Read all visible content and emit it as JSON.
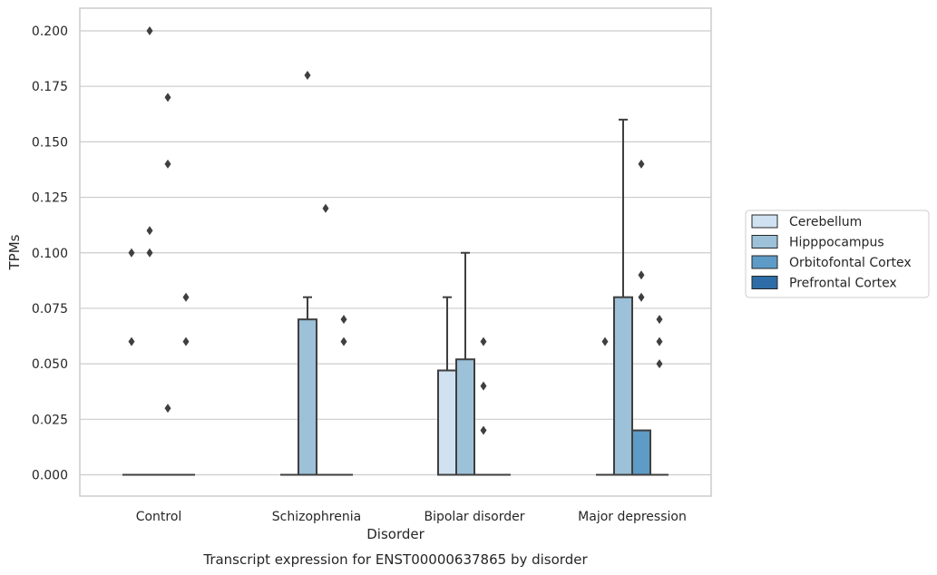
{
  "chart_data": {
    "type": "box",
    "title": "",
    "caption": "Transcript expression for ENST00000637865 by disorder",
    "xlabel": "Disorder",
    "ylabel": "TPMs",
    "ylim": [
      -0.01,
      0.21
    ],
    "yticks": [
      0.0,
      0.025,
      0.05,
      0.075,
      0.1,
      0.125,
      0.15,
      0.175,
      0.2
    ],
    "ytick_labels": [
      "0.000",
      "0.025",
      "0.050",
      "0.075",
      "0.100",
      "0.125",
      "0.150",
      "0.175",
      "0.200"
    ],
    "grid": "horizontal",
    "legend_position": "right",
    "categories": [
      "Control",
      "Schizophrenia",
      "Bipolar disorder",
      "Major depression"
    ],
    "series": [
      {
        "name": "Cerebellum",
        "color": "#d0e1f1",
        "boxes": [
          {
            "q1": 0,
            "median": 0,
            "q3": 0,
            "whisker_low": 0,
            "whisker_high": 0,
            "outliers": [
              0.06,
              0.1
            ]
          },
          {
            "q1": 0,
            "median": 0,
            "q3": 0,
            "whisker_low": 0,
            "whisker_high": 0,
            "outliers": []
          },
          {
            "q1": 0,
            "median": 0,
            "q3": 0.047,
            "whisker_low": 0,
            "whisker_high": 0.08,
            "outliers": []
          },
          {
            "q1": 0,
            "median": 0,
            "q3": 0,
            "whisker_low": 0,
            "whisker_high": 0,
            "outliers": [
              0.06
            ]
          }
        ]
      },
      {
        "name": "Hipppocampus",
        "color": "#9cc1d8",
        "boxes": [
          {
            "q1": 0,
            "median": 0,
            "q3": 0,
            "whisker_low": 0,
            "whisker_high": 0,
            "outliers": [
              0.2,
              0.11,
              0.1
            ]
          },
          {
            "q1": 0,
            "median": 0,
            "q3": 0.07,
            "whisker_low": 0,
            "whisker_high": 0.08,
            "outliers": [
              0.18
            ]
          },
          {
            "q1": 0,
            "median": 0,
            "q3": 0.052,
            "whisker_low": 0,
            "whisker_high": 0.1,
            "outliers": []
          },
          {
            "q1": 0,
            "median": 0,
            "q3": 0.08,
            "whisker_low": 0,
            "whisker_high": 0.16,
            "outliers": []
          }
        ]
      },
      {
        "name": "Orbitofontal Cortex",
        "color": "#5e9bc6",
        "boxes": [
          {
            "q1": 0,
            "median": 0,
            "q3": 0,
            "whisker_low": 0,
            "whisker_high": 0,
            "outliers": [
              0.17,
              0.14,
              0.03
            ]
          },
          {
            "q1": 0,
            "median": 0,
            "q3": 0,
            "whisker_low": 0,
            "whisker_high": 0,
            "outliers": [
              0.12
            ]
          },
          {
            "q1": 0,
            "median": 0,
            "q3": 0,
            "whisker_low": 0,
            "whisker_high": 0,
            "outliers": [
              0.06,
              0.04,
              0.02
            ]
          },
          {
            "q1": 0,
            "median": 0,
            "q3": 0.02,
            "whisker_low": 0,
            "whisker_high": 0.02,
            "outliers": [
              0.14,
              0.09,
              0.08
            ]
          }
        ]
      },
      {
        "name": "Prefrontal Cortex",
        "color": "#2d6ca6",
        "boxes": [
          {
            "q1": 0,
            "median": 0,
            "q3": 0,
            "whisker_low": 0,
            "whisker_high": 0,
            "outliers": [
              0.08,
              0.06
            ]
          },
          {
            "q1": 0,
            "median": 0,
            "q3": 0,
            "whisker_low": 0,
            "whisker_high": 0,
            "outliers": [
              0.07,
              0.06
            ]
          },
          {
            "q1": 0,
            "median": 0,
            "q3": 0,
            "whisker_low": 0,
            "whisker_high": 0,
            "outliers": []
          },
          {
            "q1": 0,
            "median": 0,
            "q3": 0,
            "whisker_low": 0,
            "whisker_high": 0,
            "outliers": [
              0.07,
              0.06,
              0.05
            ]
          }
        ]
      }
    ],
    "colors": {
      "box_edge": "#3f3f3f",
      "grid": "#cccccc",
      "frame": "#cccccc",
      "outlier": "#3f3f3f"
    }
  }
}
